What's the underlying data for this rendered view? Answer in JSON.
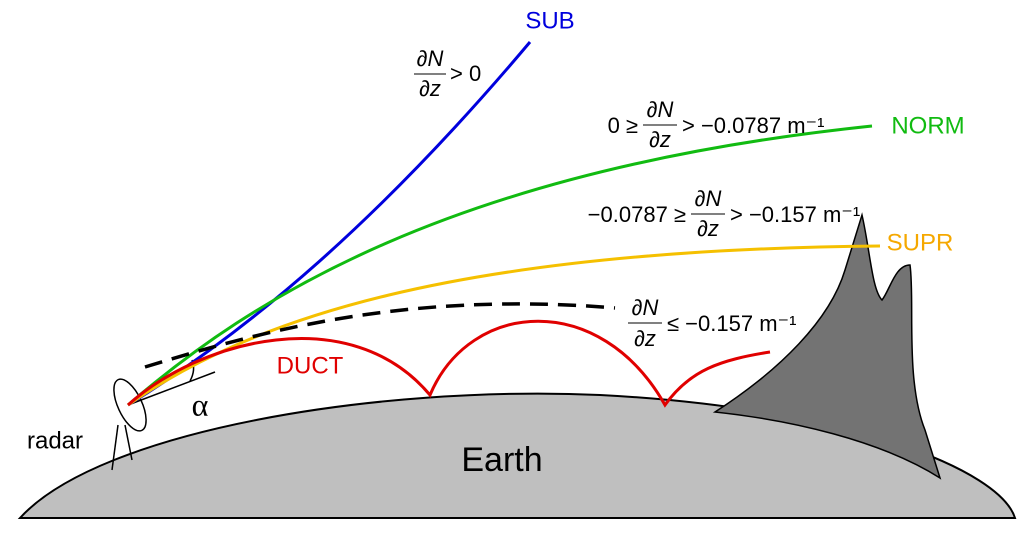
{
  "labels": {
    "sub": "SUB",
    "norm": "NORM",
    "supr": "SUPR",
    "duct": "DUCT",
    "radar": "radar",
    "earth": "Earth",
    "alpha": "α"
  },
  "conditions": [
    {
      "numerator": "∂N",
      "denominator": "∂z",
      "right": "> 0"
    },
    {
      "left": "0 ≥",
      "numerator": "∂N",
      "denominator": "∂z",
      "right": "> −0.0787 m⁻¹"
    },
    {
      "left": "−0.0787 ≥",
      "numerator": "∂N",
      "denominator": "∂z",
      "right": "> −0.157 m⁻¹"
    },
    {
      "numerator": "∂N",
      "denominator": "∂z",
      "right": "≤ −0.157 m⁻¹"
    }
  ]
}
